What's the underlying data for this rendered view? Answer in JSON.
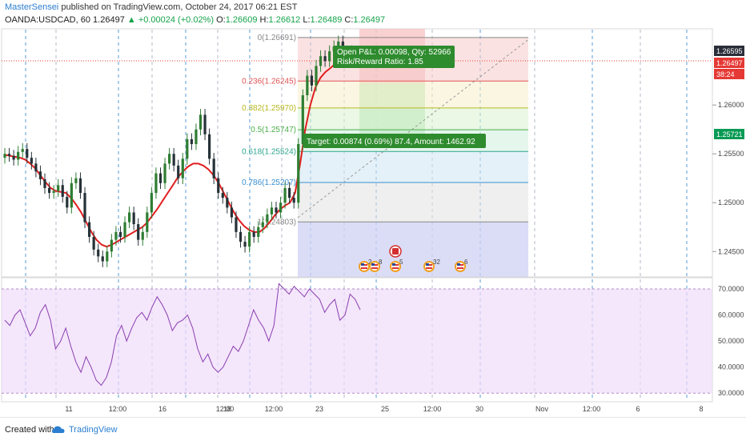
{
  "header": {
    "author": "MasterSensei",
    "published": "published on TradingView.com, October 24, 2017 06:21 EST",
    "symbol": "OANDA:USDCAD, 60",
    "last": "1.26497",
    "change": "▲ +0.00024 (+0.02%)",
    "o_label": "O:",
    "o_value": "1.26609",
    "h_label": "H:",
    "h_value": "1.26612",
    "l_label": "L:",
    "l_value": "1.26489",
    "c_label": "C:",
    "c_value": "1.26497"
  },
  "price_axis": {
    "ticks": [
      "1.26000",
      "1.25500",
      "1.25000",
      "1.24500"
    ],
    "badges": [
      {
        "text": "1.26595",
        "color": "#2a2e39"
      },
      {
        "text": "1.26497",
        "color": "#e53935"
      },
      {
        "text": "38:24",
        "color": "#e53935"
      },
      {
        "text": "1.25721",
        "color": "#089a54"
      }
    ]
  },
  "rsi_axis": {
    "ticks": [
      "70.0000",
      "60.0000",
      "50.0000",
      "40.0000",
      "30.0000"
    ]
  },
  "time_axis": {
    "labels": [
      "11",
      "12:00",
      "16",
      "12:00",
      "18",
      "12:00",
      "23",
      "25",
      "12:00",
      "30",
      "Nov",
      "12:00",
      "6",
      "8"
    ]
  },
  "fib_levels": [
    {
      "ratio": "0",
      "price": "1.26691",
      "label": "0(1.26691)",
      "color": "#888888"
    },
    {
      "ratio": "0.236",
      "price": "1.26245",
      "label": "0.236(1.26245)",
      "color": "#e05555"
    },
    {
      "ratio": "0.382",
      "price": "1.25970",
      "label": "0.382(1.25970)",
      "color": "#b8b820"
    },
    {
      "ratio": "0.5",
      "price": "1.25747",
      "label": "0.5(1.25747)",
      "color": "#4cae4c"
    },
    {
      "ratio": "0.618",
      "price": "1.25524",
      "label": "0.618(1.25524)",
      "color": "#2ca58d"
    },
    {
      "ratio": "0.786",
      "price": "1.25207",
      "label": "0.786(1.25207)",
      "color": "#3a8fd0"
    },
    {
      "ratio": "1",
      "price": "1.24803",
      "label": "1(1.24803)",
      "color": "#888888"
    }
  ],
  "position_labels": {
    "open_pl": "Open P&L: 0.00098, Qty: 52966",
    "risk_reward": "Risk/Reward Ratio: 1.85",
    "target": "Target: 0.00874 (0.69%) 87.4, Amount: 1462.92"
  },
  "events": [
    {
      "flag": "us",
      "count": "2"
    },
    {
      "flag": "us",
      "count": "8"
    },
    {
      "flag": "us",
      "count": "5"
    },
    {
      "flag": "us",
      "count": "32"
    },
    {
      "flag": "us",
      "count": "6"
    },
    {
      "flag": "ca",
      "count": ""
    }
  ],
  "footer": {
    "created_with": "Created with",
    "brand": "TradingView"
  },
  "colors": {
    "ma_line": "#e01e1e",
    "rsi_line": "#8a3fb0",
    "rsi_band": "#f0dcfa",
    "up_candle": "#2e7d32",
    "down_candle": "#263238",
    "tv_blue": "#2a7ed0"
  },
  "chart_data": {
    "type": "candlestick",
    "price_ylim": [
      1.2424,
      1.2678
    ],
    "rsi_ylim": [
      27,
      74
    ],
    "rsi_band": [
      30,
      70
    ],
    "price_series": [
      1.255,
      1.2548,
      1.2544,
      1.2552,
      1.2555,
      1.2546,
      1.254,
      1.2532,
      1.2524,
      1.2515,
      1.251,
      1.2512,
      1.2518,
      1.2506,
      1.2495,
      1.252,
      1.2525,
      1.251,
      1.248,
      1.2465,
      1.2452,
      1.2445,
      1.244,
      1.245,
      1.2462,
      1.247,
      1.2465,
      1.248,
      1.249,
      1.2478,
      1.2462,
      1.247,
      1.249,
      1.251,
      1.253,
      1.252,
      1.254,
      1.255,
      1.2538,
      1.2525,
      1.2545,
      1.2565,
      1.256,
      1.2575,
      1.259,
      1.257,
      1.2545,
      1.2525,
      1.251,
      1.2505,
      1.2495,
      1.2485,
      1.247,
      1.246,
      1.2455,
      1.247,
      1.2465,
      1.2475,
      1.248,
      1.2488,
      1.2495,
      1.249,
      1.25,
      1.2515,
      1.2505,
      1.25,
      1.256,
      1.261,
      1.263,
      1.262,
      1.264,
      1.265,
      1.2645,
      1.2655,
      1.266,
      1.2665,
      1.265,
      1.2655,
      1.2645,
      1.265
    ],
    "ma_series": [
      1.2549,
      1.2548,
      1.2547,
      1.2546,
      1.2544,
      1.254,
      1.2535,
      1.2528,
      1.2521,
      1.2515,
      1.2512,
      1.2511,
      1.251,
      1.2505,
      1.2498,
      1.249,
      1.248,
      1.247,
      1.2462,
      1.2457,
      1.2455,
      1.2457,
      1.246,
      1.2463,
      1.2466,
      1.2469,
      1.2472,
      1.2475,
      1.248,
      1.2487,
      1.2494,
      1.2502,
      1.251,
      1.2518,
      1.2526,
      1.2532,
      1.2537,
      1.254,
      1.254,
      1.2538,
      1.2534,
      1.2528,
      1.252,
      1.251,
      1.25,
      1.249,
      1.2482,
      1.2476,
      1.2472,
      1.247,
      1.247,
      1.2474,
      1.248,
      1.2487,
      1.2493,
      1.2497,
      1.25,
      1.251,
      1.254,
      1.2575,
      1.26,
      1.2618,
      1.2628,
      1.2634,
      1.2638,
      1.2643,
      1.2645,
      1.2646,
      1.2647,
      1.2648
    ],
    "rsi_series": [
      58,
      56,
      60,
      62,
      57,
      52,
      55,
      61,
      64,
      58,
      47,
      50,
      55,
      48,
      42,
      38,
      44,
      40,
      35,
      33,
      36,
      42,
      52,
      56,
      50,
      55,
      59,
      61,
      58,
      63,
      67,
      64,
      60,
      54,
      57,
      58,
      60,
      55,
      47,
      42,
      45,
      40,
      38,
      40,
      44,
      48,
      46,
      50,
      56,
      62,
      58,
      55,
      50,
      56,
      72,
      70,
      68,
      71,
      69,
      67,
      70,
      68,
      66,
      61,
      64,
      66,
      58,
      60,
      68,
      66,
      62
    ]
  }
}
